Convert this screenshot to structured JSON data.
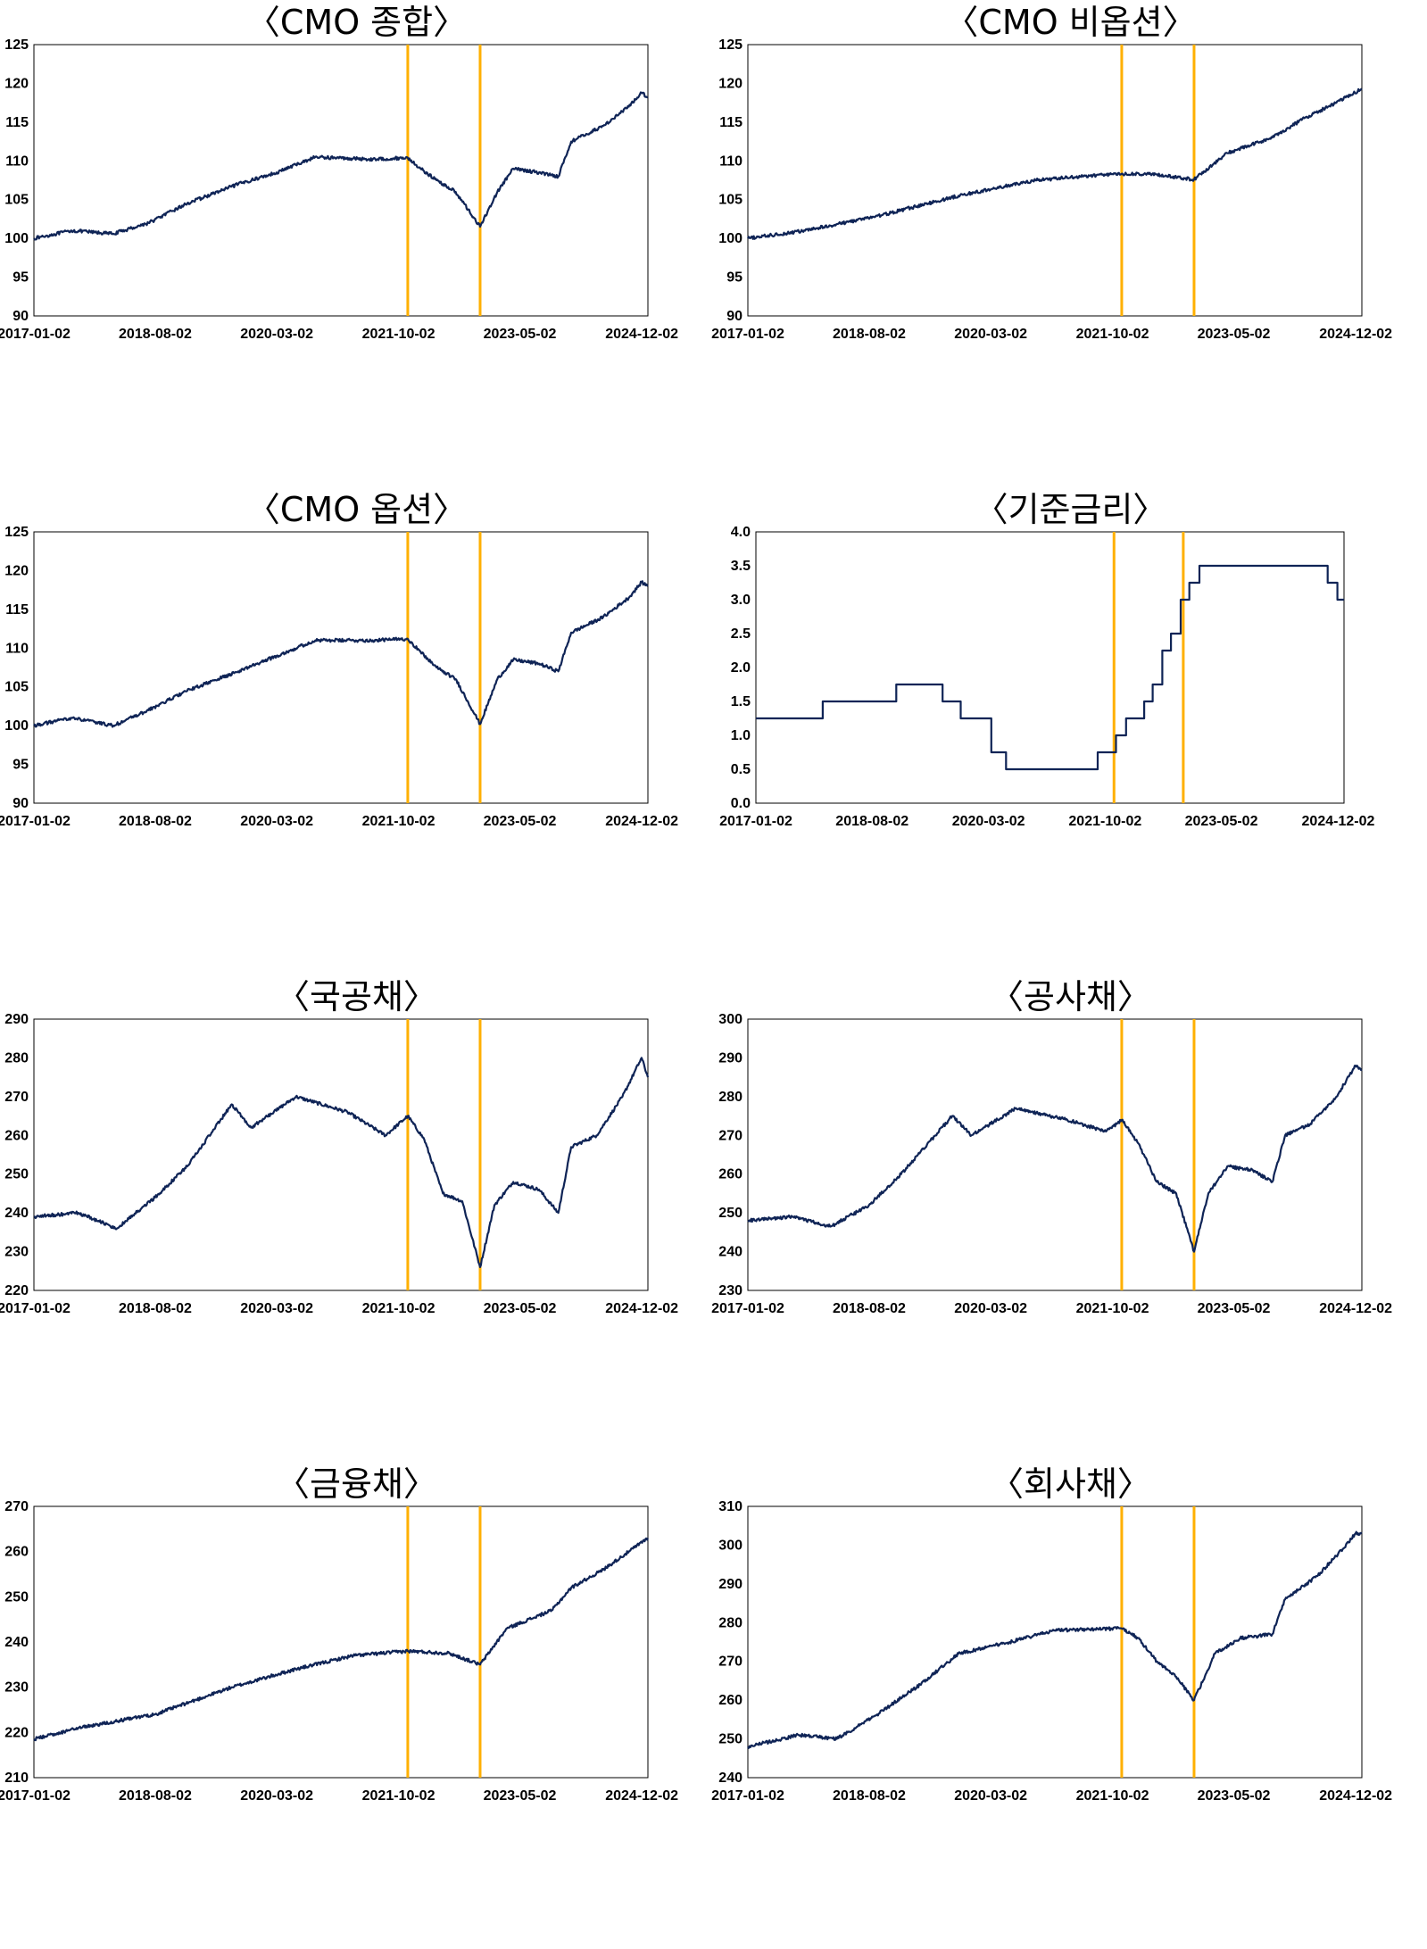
{
  "colors": {
    "series": "#0f2456",
    "event_line": "#ffb000",
    "frame": "#000000"
  },
  "chart_data": [
    {
      "type": "line",
      "title": "〈CMO 종합〉",
      "x_ticks": [
        "2017-01-02",
        "2018-08-02",
        "2020-03-02",
        "2021-10-02",
        "2023-05-02",
        "2024-12-02"
      ],
      "x_range": [
        "2017-01-02",
        "2024-12-31"
      ],
      "ylim": [
        90,
        125
      ],
      "yticks": [
        90,
        95,
        100,
        105,
        110,
        115,
        120,
        125
      ],
      "ydec": 0,
      "vlines": [
        "2021-11-15",
        "2022-10-25"
      ],
      "step": false,
      "anchors": [
        [
          "2017-01-02",
          100
        ],
        [
          "2017-07-01",
          101
        ],
        [
          "2018-01-15",
          100.6
        ],
        [
          "2018-07-01",
          102
        ],
        [
          "2019-01-01",
          104.5
        ],
        [
          "2019-09-01",
          107
        ],
        [
          "2020-03-01",
          108.5
        ],
        [
          "2020-09-01",
          110.5
        ],
        [
          "2021-06-01",
          110.2
        ],
        [
          "2021-11-15",
          110.4
        ],
        [
          "2022-01-15",
          109
        ],
        [
          "2022-04-01",
          107.5
        ],
        [
          "2022-07-01",
          106
        ],
        [
          "2022-10-25",
          101.5
        ],
        [
          "2023-01-15",
          106
        ],
        [
          "2023-04-01",
          109
        ],
        [
          "2023-08-01",
          108.5
        ],
        [
          "2023-11-01",
          108
        ],
        [
          "2024-01-01",
          112.5
        ],
        [
          "2024-06-01",
          114.5
        ],
        [
          "2024-10-01",
          117
        ],
        [
          "2024-12-01",
          118.8
        ],
        [
          "2024-12-31",
          118.2
        ]
      ]
    },
    {
      "type": "line",
      "title": "〈CMO 비옵션〉",
      "x_ticks": [
        "2017-01-02",
        "2018-08-02",
        "2020-03-02",
        "2021-10-02",
        "2023-05-02",
        "2024-12-02"
      ],
      "x_range": [
        "2017-01-02",
        "2024-12-31"
      ],
      "ylim": [
        90,
        125
      ],
      "yticks": [
        90,
        95,
        100,
        105,
        110,
        115,
        120,
        125
      ],
      "ydec": 0,
      "vlines": [
        "2021-11-15",
        "2022-10-25"
      ],
      "step": false,
      "anchors": [
        [
          "2017-01-02",
          100
        ],
        [
          "2017-10-01",
          101
        ],
        [
          "2018-10-01",
          103
        ],
        [
          "2019-10-01",
          105.5
        ],
        [
          "2020-10-01",
          107.5
        ],
        [
          "2021-10-01",
          108.3
        ],
        [
          "2022-04-01",
          108.3
        ],
        [
          "2022-10-25",
          107.6
        ],
        [
          "2023-04-01",
          111
        ],
        [
          "2023-11-01",
          113
        ],
        [
          "2024-04-01",
          115.5
        ],
        [
          "2024-09-01",
          117.5
        ],
        [
          "2024-12-31",
          119.3
        ]
      ]
    },
    {
      "type": "line",
      "title": "〈CMO 옵션〉",
      "x_ticks": [
        "2017-01-02",
        "2018-08-02",
        "2020-03-02",
        "2021-10-02",
        "2023-05-02",
        "2024-12-02"
      ],
      "x_range": [
        "2017-01-02",
        "2024-12-31"
      ],
      "ylim": [
        90,
        125
      ],
      "yticks": [
        90,
        95,
        100,
        105,
        110,
        115,
        120,
        125
      ],
      "ydec": 0,
      "vlines": [
        "2021-11-15",
        "2022-10-25"
      ],
      "step": false,
      "anchors": [
        [
          "2017-01-02",
          100
        ],
        [
          "2017-07-01",
          101
        ],
        [
          "2018-01-15",
          100
        ],
        [
          "2018-07-01",
          102
        ],
        [
          "2019-01-01",
          104.5
        ],
        [
          "2019-09-01",
          107
        ],
        [
          "2020-03-01",
          109
        ],
        [
          "2020-09-01",
          111
        ],
        [
          "2021-06-01",
          111
        ],
        [
          "2021-11-15",
          111.2
        ],
        [
          "2022-01-15",
          109.5
        ],
        [
          "2022-04-01",
          107.5
        ],
        [
          "2022-07-01",
          106
        ],
        [
          "2022-10-25",
          100.2
        ],
        [
          "2023-01-15",
          106
        ],
        [
          "2023-04-01",
          108.5
        ],
        [
          "2023-08-01",
          108
        ],
        [
          "2023-11-01",
          107
        ],
        [
          "2024-01-01",
          112
        ],
        [
          "2024-06-01",
          114
        ],
        [
          "2024-10-01",
          116.5
        ],
        [
          "2024-12-01",
          118.5
        ],
        [
          "2024-12-31",
          118
        ]
      ]
    },
    {
      "type": "line",
      "title": "〈기준금리〉",
      "x_ticks": [
        "2017-01-02",
        "2018-08-02",
        "2020-03-02",
        "2021-10-02",
        "2023-05-02",
        "2024-12-02"
      ],
      "x_range": [
        "2017-01-02",
        "2024-12-31"
      ],
      "ylim": [
        0,
        4
      ],
      "yticks": [
        0,
        0.5,
        1,
        1.5,
        2,
        2.5,
        3,
        3.5,
        4
      ],
      "ydec": 1,
      "vlines": [
        "2021-11-15",
        "2022-10-25"
      ],
      "step": true,
      "anchors": [
        [
          "2017-01-02",
          1.25
        ],
        [
          "2017-11-30",
          1.5
        ],
        [
          "2018-11-30",
          1.75
        ],
        [
          "2019-07-18",
          1.5
        ],
        [
          "2019-10-16",
          1.25
        ],
        [
          "2020-03-16",
          0.75
        ],
        [
          "2020-05-28",
          0.5
        ],
        [
          "2021-08-26",
          0.75
        ],
        [
          "2021-11-25",
          1.0
        ],
        [
          "2022-01-14",
          1.25
        ],
        [
          "2022-04-14",
          1.5
        ],
        [
          "2022-05-26",
          1.75
        ],
        [
          "2022-07-13",
          2.25
        ],
        [
          "2022-08-25",
          2.5
        ],
        [
          "2022-10-12",
          3.0
        ],
        [
          "2022-11-24",
          3.25
        ],
        [
          "2023-01-13",
          3.5
        ],
        [
          "2024-10-11",
          3.25
        ],
        [
          "2024-11-28",
          3.0
        ],
        [
          "2024-12-31",
          3.0
        ]
      ]
    },
    {
      "type": "line",
      "title": "〈국공채〉",
      "x_ticks": [
        "2017-01-02",
        "2018-08-02",
        "2020-03-02",
        "2021-10-02",
        "2023-05-02",
        "2024-12-02"
      ],
      "x_range": [
        "2017-01-02",
        "2024-12-31"
      ],
      "ylim": [
        220,
        290
      ],
      "yticks": [
        220,
        230,
        240,
        250,
        260,
        270,
        280,
        290
      ],
      "ydec": 0,
      "vlines": [
        "2021-11-15",
        "2022-10-25"
      ],
      "step": false,
      "anchors": [
        [
          "2017-01-02",
          239
        ],
        [
          "2017-08-01",
          240
        ],
        [
          "2018-02-01",
          236
        ],
        [
          "2018-08-01",
          244
        ],
        [
          "2019-01-01",
          252
        ],
        [
          "2019-08-01",
          268
        ],
        [
          "2019-11-01",
          262
        ],
        [
          "2020-06-01",
          270
        ],
        [
          "2021-02-01",
          266
        ],
        [
          "2021-08-01",
          260
        ],
        [
          "2021-11-15",
          265
        ],
        [
          "2022-02-01",
          259
        ],
        [
          "2022-05-01",
          245
        ],
        [
          "2022-08-01",
          243
        ],
        [
          "2022-10-25",
          226
        ],
        [
          "2023-01-01",
          242
        ],
        [
          "2023-04-01",
          248
        ],
        [
          "2023-08-01",
          246
        ],
        [
          "2023-11-01",
          240
        ],
        [
          "2024-01-01",
          257
        ],
        [
          "2024-05-01",
          260
        ],
        [
          "2024-09-01",
          270
        ],
        [
          "2024-12-01",
          280
        ],
        [
          "2024-12-31",
          275
        ]
      ]
    },
    {
      "type": "line",
      "title": "〈공사채〉",
      "x_ticks": [
        "2017-01-02",
        "2018-08-02",
        "2020-03-02",
        "2021-10-02",
        "2023-05-02",
        "2024-12-02"
      ],
      "x_range": [
        "2017-01-02",
        "2024-12-31"
      ],
      "ylim": [
        230,
        300
      ],
      "yticks": [
        230,
        240,
        250,
        260,
        270,
        280,
        290,
        300
      ],
      "ydec": 0,
      "vlines": [
        "2021-11-15",
        "2022-10-25"
      ],
      "step": false,
      "anchors": [
        [
          "2017-01-02",
          248
        ],
        [
          "2017-08-01",
          249
        ],
        [
          "2018-02-01",
          246.5
        ],
        [
          "2018-08-01",
          252
        ],
        [
          "2019-01-01",
          260
        ],
        [
          "2019-09-01",
          275
        ],
        [
          "2019-12-01",
          270
        ],
        [
          "2020-07-01",
          277
        ],
        [
          "2021-03-01",
          274
        ],
        [
          "2021-09-01",
          271
        ],
        [
          "2021-11-15",
          274
        ],
        [
          "2022-02-01",
          268
        ],
        [
          "2022-05-01",
          258
        ],
        [
          "2022-08-01",
          255
        ],
        [
          "2022-10-25",
          240
        ],
        [
          "2023-01-01",
          255
        ],
        [
          "2023-04-01",
          262
        ],
        [
          "2023-08-01",
          261
        ],
        [
          "2023-11-01",
          258
        ],
        [
          "2024-01-01",
          270
        ],
        [
          "2024-05-01",
          273
        ],
        [
          "2024-09-01",
          280
        ],
        [
          "2024-12-01",
          288
        ],
        [
          "2024-12-31",
          287
        ]
      ]
    },
    {
      "type": "line",
      "title": "〈금융채〉",
      "x_ticks": [
        "2017-01-02",
        "2018-08-02",
        "2020-03-02",
        "2021-10-02",
        "2023-05-02",
        "2024-12-02"
      ],
      "x_range": [
        "2017-01-02",
        "2024-12-31"
      ],
      "ylim": [
        210,
        270
      ],
      "yticks": [
        210,
        220,
        230,
        240,
        250,
        260,
        270
      ],
      "ydec": 0,
      "vlines": [
        "2021-11-15",
        "2022-10-25"
      ],
      "step": false,
      "anchors": [
        [
          "2017-01-02",
          218.5
        ],
        [
          "2017-08-01",
          221
        ],
        [
          "2018-08-01",
          224
        ],
        [
          "2019-08-01",
          230
        ],
        [
          "2020-06-01",
          234
        ],
        [
          "2021-03-01",
          237
        ],
        [
          "2021-11-15",
          238
        ],
        [
          "2022-06-01",
          237.5
        ],
        [
          "2022-10-25",
          235
        ],
        [
          "2023-03-01",
          243
        ],
        [
          "2023-10-01",
          247
        ],
        [
          "2024-01-01",
          252
        ],
        [
          "2024-06-01",
          256
        ],
        [
          "2024-10-01",
          260
        ],
        [
          "2024-12-31",
          263
        ]
      ]
    },
    {
      "type": "line",
      "title": "〈회사채〉",
      "x_ticks": [
        "2017-01-02",
        "2018-08-02",
        "2020-03-02",
        "2021-10-02",
        "2023-05-02",
        "2024-12-02"
      ],
      "x_range": [
        "2017-01-02",
        "2024-12-31"
      ],
      "ylim": [
        240,
        310
      ],
      "yticks": [
        240,
        250,
        260,
        270,
        280,
        290,
        300,
        310
      ],
      "ydec": 0,
      "vlines": [
        "2021-11-15",
        "2022-10-25"
      ],
      "step": false,
      "anchors": [
        [
          "2017-01-02",
          248
        ],
        [
          "2017-09-01",
          251
        ],
        [
          "2018-03-01",
          250
        ],
        [
          "2018-09-01",
          256
        ],
        [
          "2019-04-01",
          264
        ],
        [
          "2019-10-01",
          272
        ],
        [
          "2020-06-01",
          275
        ],
        [
          "2021-01-01",
          278
        ],
        [
          "2021-11-15",
          278.5
        ],
        [
          "2022-02-01",
          276
        ],
        [
          "2022-05-01",
          270
        ],
        [
          "2022-08-01",
          266
        ],
        [
          "2022-10-25",
          260
        ],
        [
          "2023-02-01",
          272
        ],
        [
          "2023-06-01",
          276
        ],
        [
          "2023-11-01",
          277
        ],
        [
          "2024-01-01",
          286
        ],
        [
          "2024-06-01",
          292
        ],
        [
          "2024-10-01",
          299
        ],
        [
          "2024-12-01",
          303
        ],
        [
          "2024-12-31",
          303
        ]
      ]
    }
  ]
}
